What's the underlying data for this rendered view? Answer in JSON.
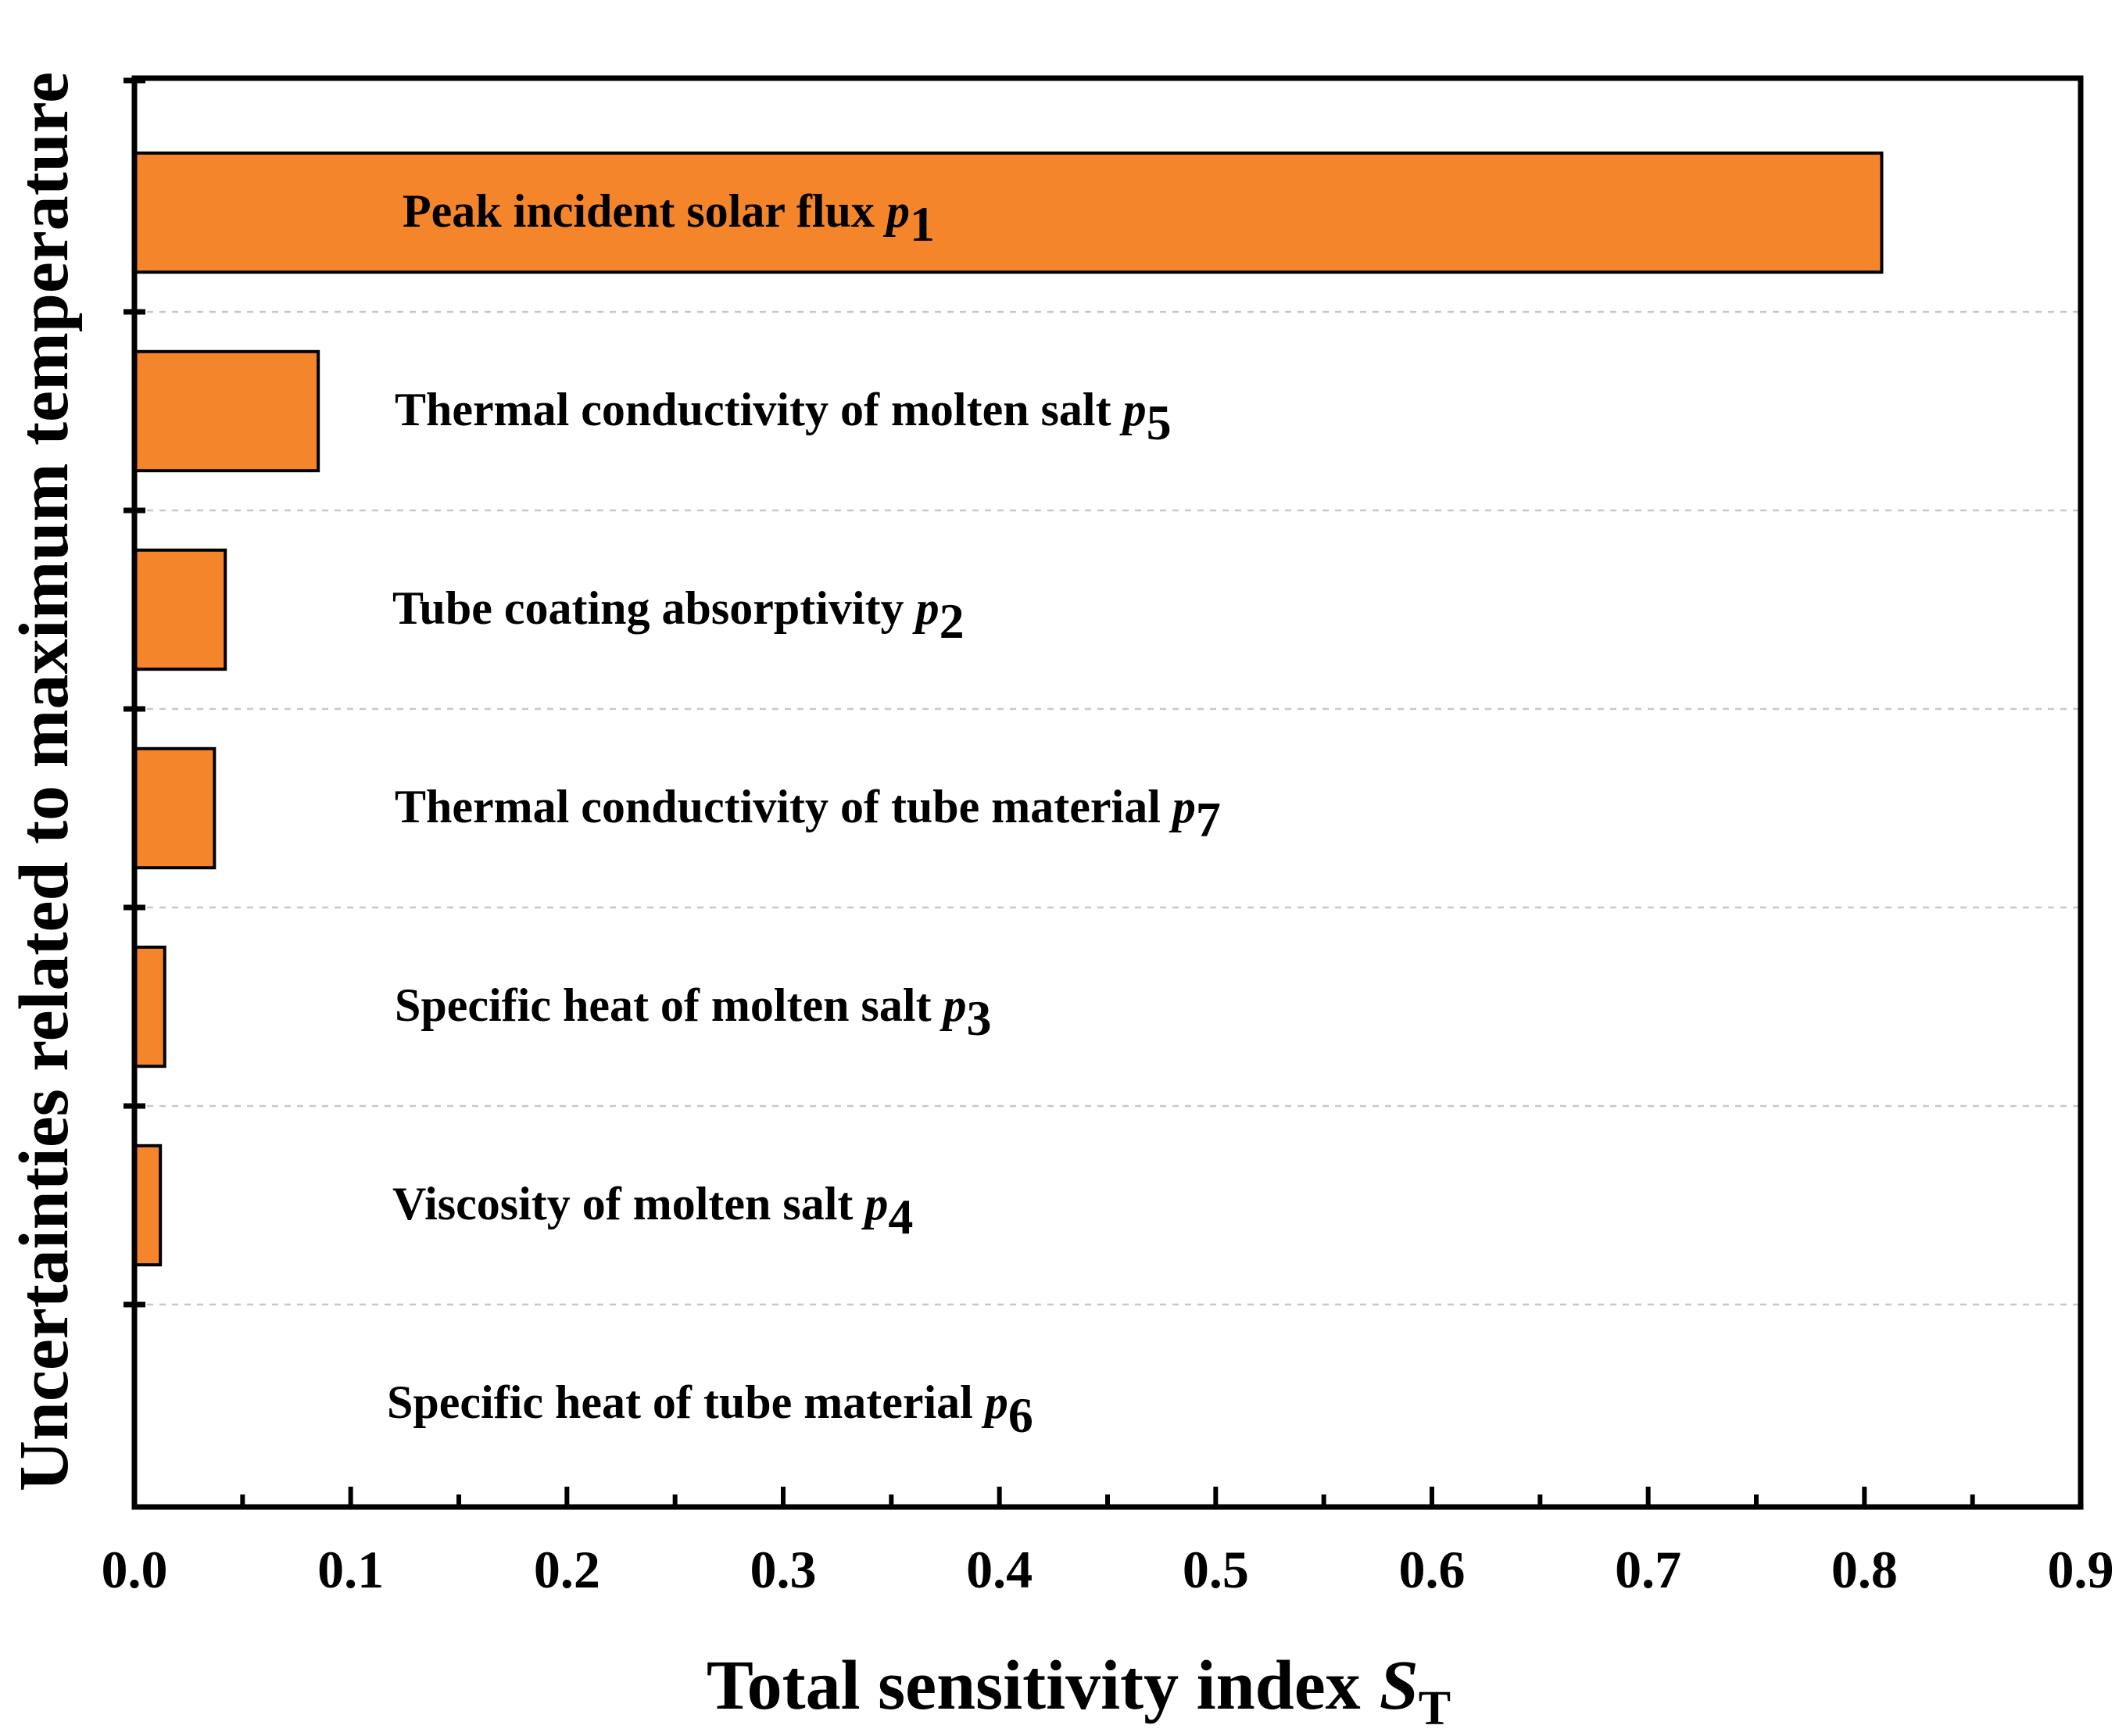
{
  "chart_data": {
    "type": "bar",
    "orientation": "horizontal",
    "xlabel": "Total sensitivity index",
    "xlabel_symbol": "S",
    "xlabel_subscript": "T",
    "ylabel": "Uncertainties related to maximum temperature",
    "xlim": [
      0,
      0.9
    ],
    "xticks": [
      "0.0",
      "0.1",
      "0.2",
      "0.3",
      "0.4",
      "0.5",
      "0.6",
      "0.7",
      "0.8",
      "0.9"
    ],
    "bar_color": "#f5852b",
    "grid": "horizontal dashed separators",
    "categories": [
      {
        "name": "Peak incident solar flux",
        "symbol": "p",
        "subscript": "1",
        "value": 0.808
      },
      {
        "name": "Thermal conductivity of molten salt",
        "symbol": "p",
        "subscript": "5",
        "value": 0.085
      },
      {
        "name": "Tube coating absorptivity",
        "symbol": "p",
        "subscript": "2",
        "value": 0.042
      },
      {
        "name": "Thermal conductivity of tube material",
        "symbol": "p",
        "subscript": "7",
        "value": 0.037
      },
      {
        "name": "Specific heat of molten salt",
        "symbol": "p",
        "subscript": "3",
        "value": 0.014
      },
      {
        "name": "Viscosity of molten salt",
        "symbol": "p",
        "subscript": "4",
        "value": 0.012
      },
      {
        "name": "Specific heat of tube material",
        "symbol": "p",
        "subscript": "6",
        "value": 0.0
      }
    ]
  }
}
